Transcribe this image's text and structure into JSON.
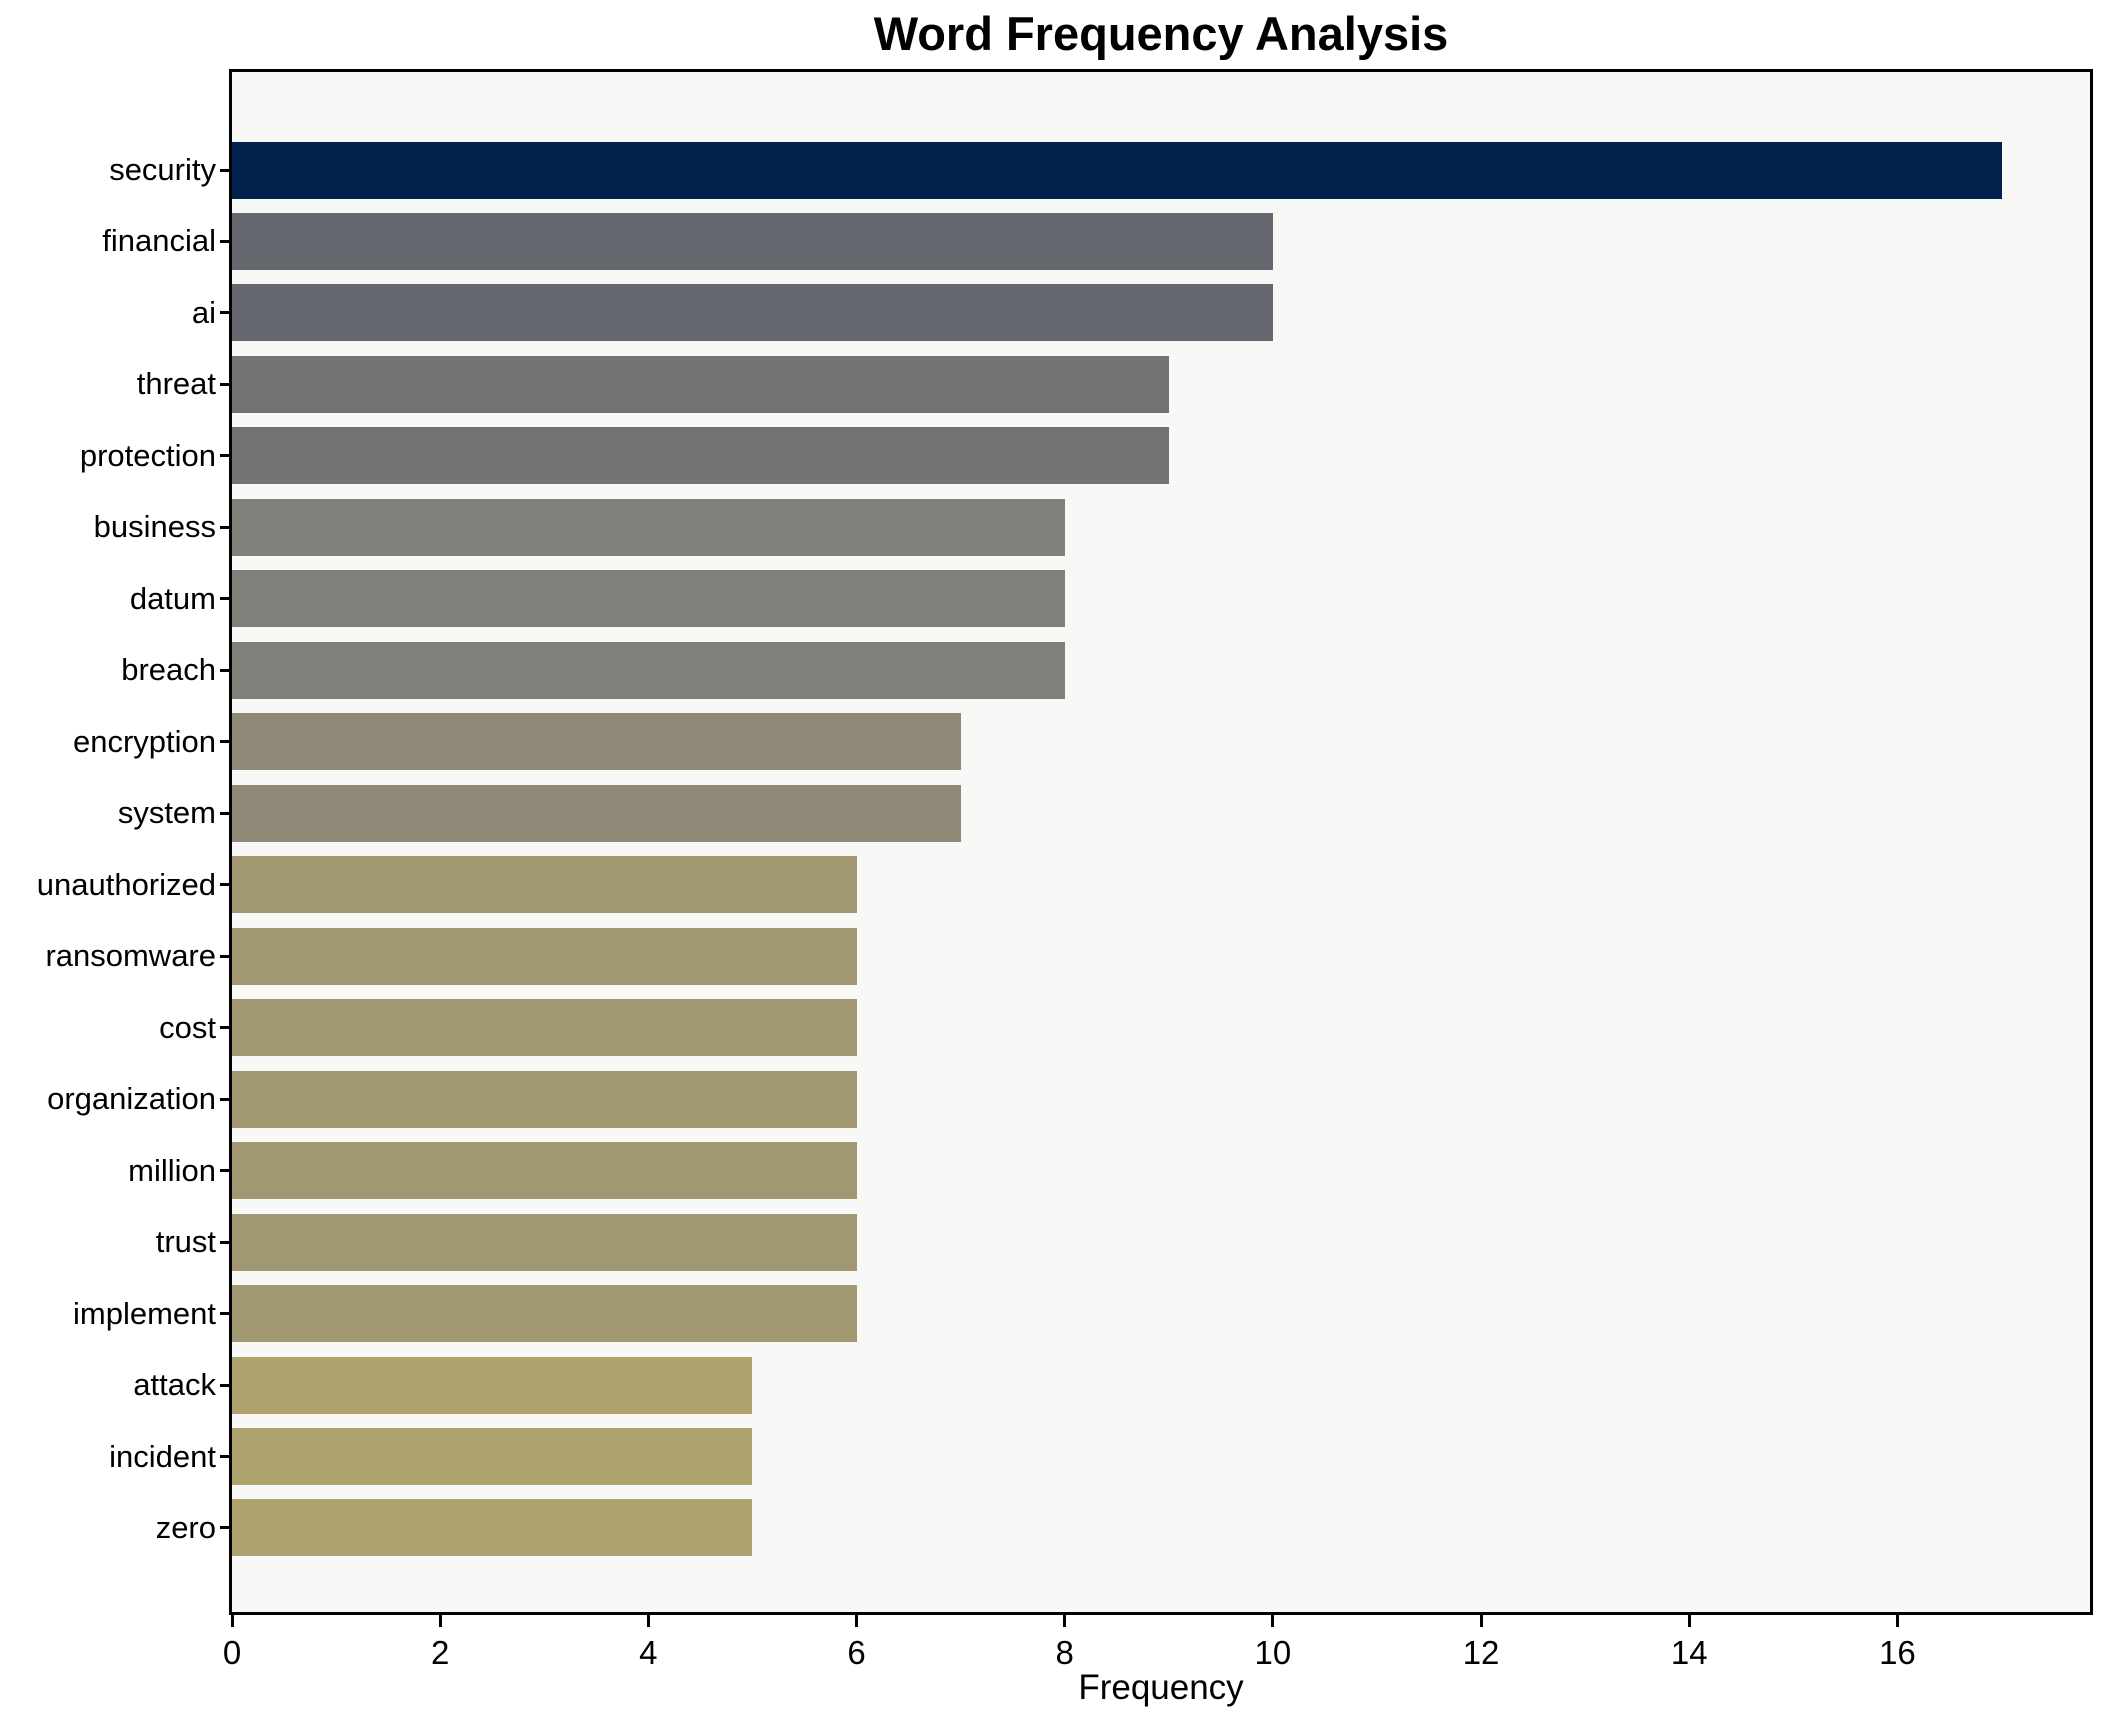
{
  "figure": {
    "title": "Word Frequency Analysis",
    "xlabel": "Frequency"
  },
  "chart_data": {
    "type": "bar",
    "orientation": "horizontal",
    "title": "Word Frequency Analysis",
    "xlabel": "Frequency",
    "ylabel": "",
    "categories": [
      "security",
      "financial",
      "ai",
      "threat",
      "protection",
      "business",
      "datum",
      "breach",
      "encryption",
      "system",
      "unauthorized",
      "ransomware",
      "cost",
      "organization",
      "million",
      "trust",
      "implement",
      "attack",
      "incident",
      "zero"
    ],
    "values": [
      17,
      10,
      10,
      9,
      9,
      8,
      8,
      8,
      7,
      7,
      6,
      6,
      6,
      6,
      6,
      6,
      6,
      5,
      5,
      5
    ],
    "bar_colors": [
      "#01234e",
      "#666870",
      "#666870",
      "#737373",
      "#737373",
      "#82807a",
      "#82807a",
      "#82807a",
      "#918977",
      "#918977",
      "#a19872",
      "#a19872",
      "#a19872",
      "#a19872",
      "#a19872",
      "#a19872",
      "#a19872",
      "#ada26d",
      "#ada26d",
      "#ada26d"
    ],
    "xlim": [
      0,
      17.85
    ],
    "xticks": [
      0,
      2,
      4,
      6,
      8,
      10,
      12,
      14,
      16
    ],
    "grid": false,
    "legend_position": "none",
    "plot_background": "#f8f8f6",
    "figure_background": "#ffffff",
    "spine_color": "#000000"
  }
}
